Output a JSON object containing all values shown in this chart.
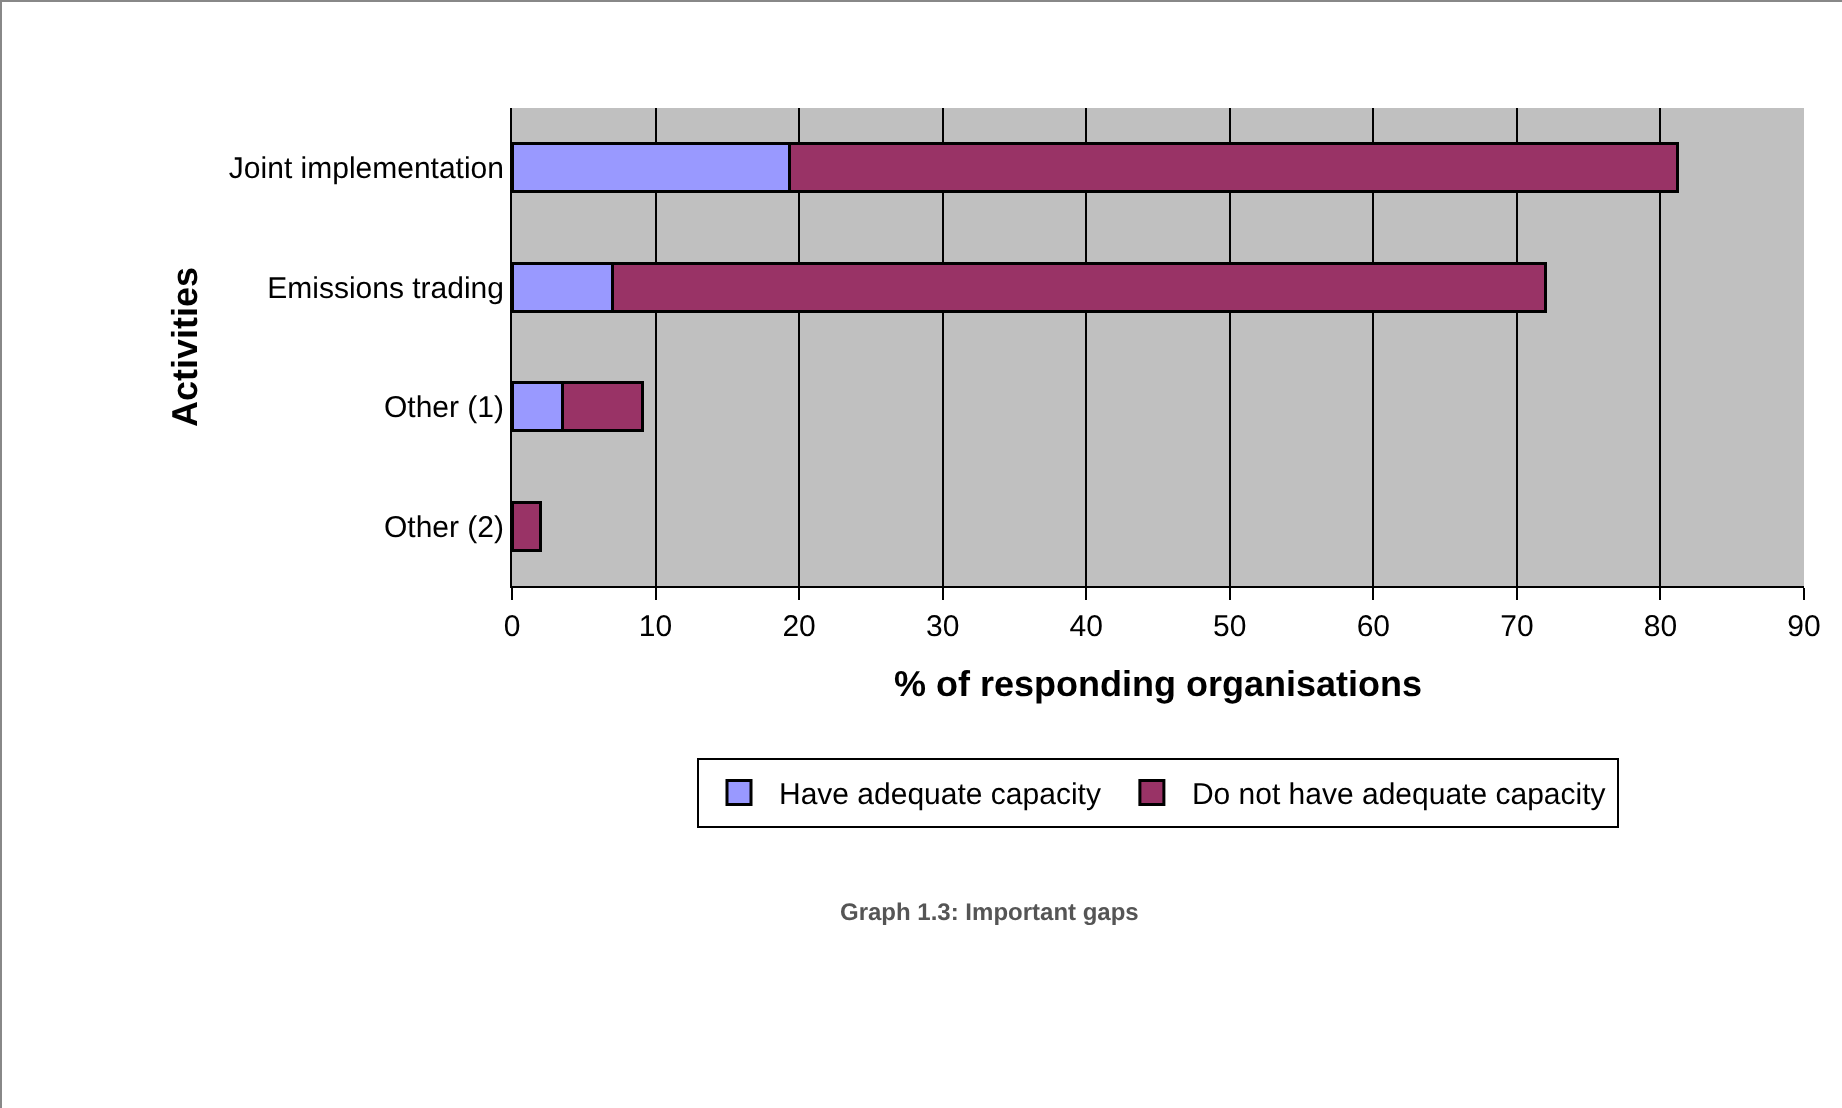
{
  "chart_data": {
    "type": "bar",
    "orientation": "horizontal",
    "stacked": true,
    "categories": [
      "Joint implementation",
      "Emissions trading",
      "Other (1)",
      "Other (2)"
    ],
    "series": [
      {
        "name": "Have adequate capacity",
        "color": "#9999ff",
        "values": [
          19.3,
          7.0,
          3.5,
          0
        ]
      },
      {
        "name": "Do not have adequate capacity",
        "color": "#993366",
        "values": [
          61.9,
          65.0,
          5.6,
          2.0
        ]
      }
    ],
    "xlim": [
      0,
      90
    ],
    "xticks": [
      0,
      10,
      20,
      30,
      40,
      50,
      60,
      70,
      80,
      90
    ],
    "xlabel": "% of responding organisations",
    "ylabel": "Activities",
    "grid": "x",
    "legend": "bottom",
    "annotations": [
      "Graph 1.3: Important gaps"
    ]
  }
}
